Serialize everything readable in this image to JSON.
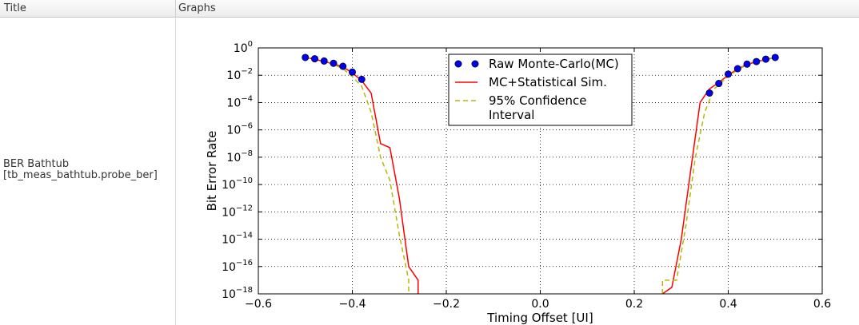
{
  "table": {
    "headers": {
      "title": "Title",
      "graphs": "Graphs"
    },
    "row": {
      "title_line1": "BER Bathtub",
      "title_line2": "[tb_meas_bathtub.probe_ber]"
    }
  },
  "chart_data": {
    "type": "line",
    "xlabel": "Timing Offset [UI]",
    "ylabel": "Bit Error Rate",
    "xlim": [
      -0.6,
      0.6
    ],
    "ylim_log10": [
      -18,
      0
    ],
    "y_scale": "log",
    "grid": true,
    "legend_position": "top-center",
    "x_ticks": [
      -0.6,
      -0.4,
      -0.2,
      0.0,
      0.2,
      0.4,
      0.6
    ],
    "x_tick_labels": [
      "−0.6",
      "−0.4",
      "−0.2",
      "0.0",
      "0.2",
      "0.4",
      "0.6"
    ],
    "y_ticks_exp": [
      0,
      -2,
      -4,
      -6,
      -8,
      -10,
      -12,
      -14,
      -16,
      -18
    ],
    "series": [
      {
        "name": "Raw Monte-Carlo(MC)",
        "style": "markers",
        "color": "#0000ee",
        "points": [
          [
            -0.5,
            0.2
          ],
          [
            -0.48,
            0.16
          ],
          [
            -0.46,
            0.11
          ],
          [
            -0.44,
            0.075
          ],
          [
            -0.42,
            0.045
          ],
          [
            -0.4,
            0.017
          ],
          [
            -0.38,
            0.005
          ],
          [
            0.36,
            0.0005
          ],
          [
            0.38,
            0.0025
          ],
          [
            0.4,
            0.012
          ],
          [
            0.42,
            0.03
          ],
          [
            0.44,
            0.065
          ],
          [
            0.46,
            0.1
          ],
          [
            0.48,
            0.15
          ],
          [
            0.5,
            0.2
          ]
        ]
      },
      {
        "name": "MC+Statistical Sim.",
        "style": "solid",
        "color": "#ff0000",
        "segments": [
          [
            [
              -0.5,
              0.2
            ],
            [
              -0.48,
              0.15
            ],
            [
              -0.46,
              0.1
            ],
            [
              -0.44,
              0.07
            ],
            [
              -0.42,
              0.04
            ],
            [
              -0.4,
              0.015
            ],
            [
              -0.38,
              0.004
            ],
            [
              -0.36,
              0.0005
            ],
            [
              -0.34,
              1e-07
            ],
            [
              -0.32,
              5e-08
            ],
            [
              -0.3,
              1e-11
            ],
            [
              -0.28,
              1e-16
            ],
            [
              -0.26,
              1e-17
            ],
            [
              -0.26,
              1e-18
            ]
          ],
          [
            [
              0.26,
              1e-18
            ],
            [
              0.26,
              1e-18
            ],
            [
              0.28,
              3e-18
            ],
            [
              0.3,
              1e-14
            ],
            [
              0.32,
              1e-09
            ],
            [
              0.34,
              0.0001
            ],
            [
              0.36,
              0.001
            ],
            [
              0.38,
              0.003
            ],
            [
              0.4,
              0.01
            ],
            [
              0.42,
              0.03
            ],
            [
              0.44,
              0.06
            ],
            [
              0.46,
              0.1
            ],
            [
              0.48,
              0.14
            ],
            [
              0.5,
              0.2
            ]
          ]
        ]
      },
      {
        "name": "95% Confidence Interval",
        "style": "dashed",
        "color": "#b8b800",
        "segments": [
          [
            [
              -0.5,
              0.2
            ],
            [
              -0.48,
              0.15
            ],
            [
              -0.46,
              0.1
            ],
            [
              -0.44,
              0.06
            ],
            [
              -0.42,
              0.03
            ],
            [
              -0.4,
              0.008
            ],
            [
              -0.38,
              0.0015
            ],
            [
              -0.36,
              2e-05
            ],
            [
              -0.34,
              1e-08
            ],
            [
              -0.32,
              2e-10
            ],
            [
              -0.3,
              2e-14
            ],
            [
              -0.28,
              1e-17
            ],
            [
              -0.28,
              1e-18
            ]
          ],
          [
            [
              0.26,
              1e-18
            ],
            [
              0.26,
              1e-17
            ],
            [
              0.29,
              1e-17
            ],
            [
              0.31,
              1e-13
            ],
            [
              0.33,
              1e-08
            ],
            [
              0.35,
              2e-05
            ],
            [
              0.37,
              0.001
            ],
            [
              0.4,
              0.008
            ],
            [
              0.42,
              0.025
            ],
            [
              0.44,
              0.06
            ],
            [
              0.46,
              0.1
            ],
            [
              0.48,
              0.15
            ],
            [
              0.5,
              0.2
            ]
          ]
        ]
      }
    ]
  }
}
